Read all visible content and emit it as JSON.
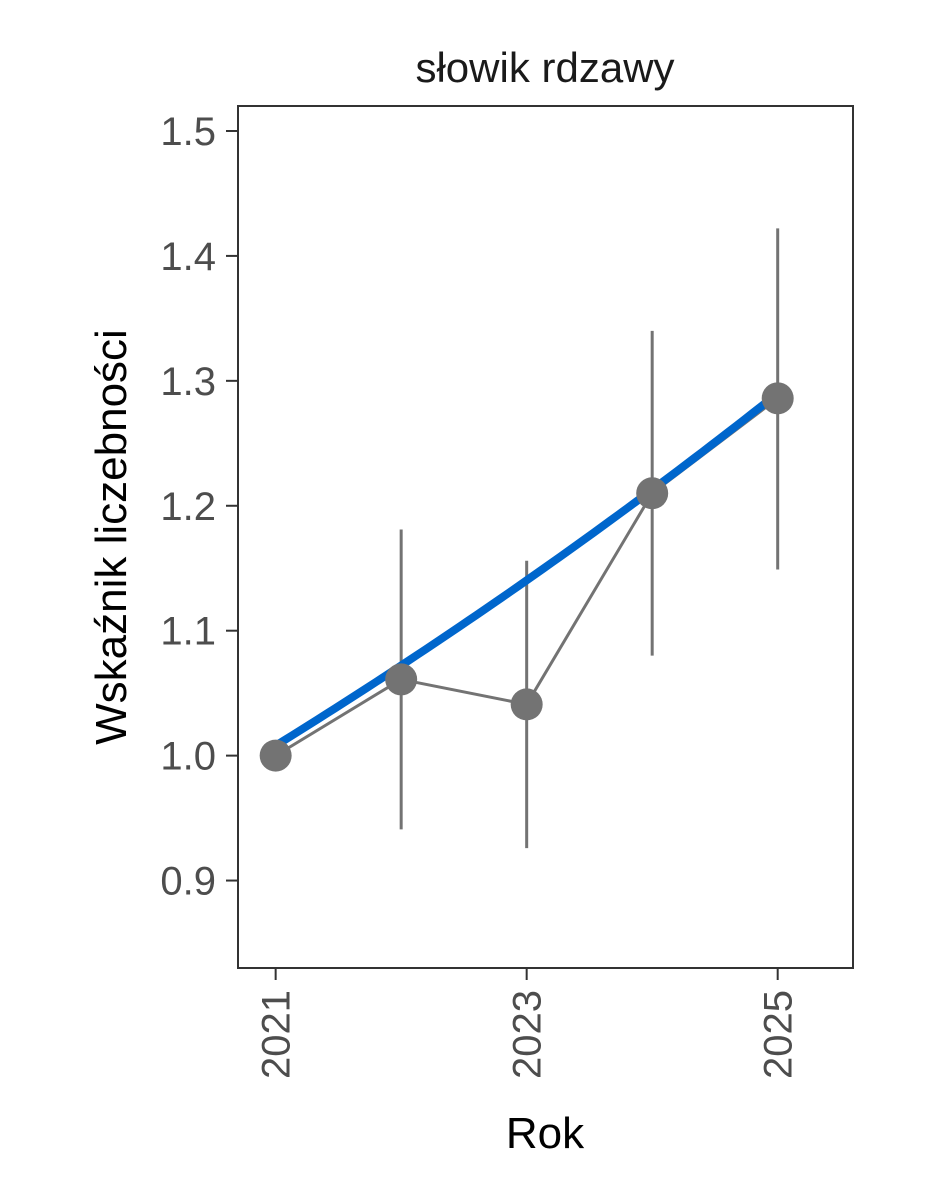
{
  "chart_data": {
    "type": "line",
    "title": "słowik rdzawy",
    "xlabel": "Rok",
    "ylabel": "Wskaźnik liczebności",
    "x": [
      2021,
      2022,
      2023,
      2024,
      2025
    ],
    "x_ticks": [
      "2021",
      "2023",
      "2025"
    ],
    "y_ticks": [
      "0.9",
      "1.0",
      "1.1",
      "1.2",
      "1.3",
      "1.4",
      "1.5"
    ],
    "xlim": [
      2020.7,
      2025.6
    ],
    "ylim": [
      0.83,
      1.52
    ],
    "grid": false,
    "series": [
      {
        "kind": "points-with-error-bars",
        "values": [
          1.0,
          1.061,
          1.041,
          1.21,
          1.286
        ],
        "lower": [
          1.0,
          0.941,
          0.926,
          1.08,
          1.149
        ],
        "upper": [
          1.0,
          1.181,
          1.156,
          1.34,
          1.422
        ],
        "color": "#737373"
      },
      {
        "kind": "trend",
        "x": [
          2021,
          2025
        ],
        "start_value": 1.008,
        "end_value": 1.29,
        "color": "#0066cc"
      }
    ]
  }
}
